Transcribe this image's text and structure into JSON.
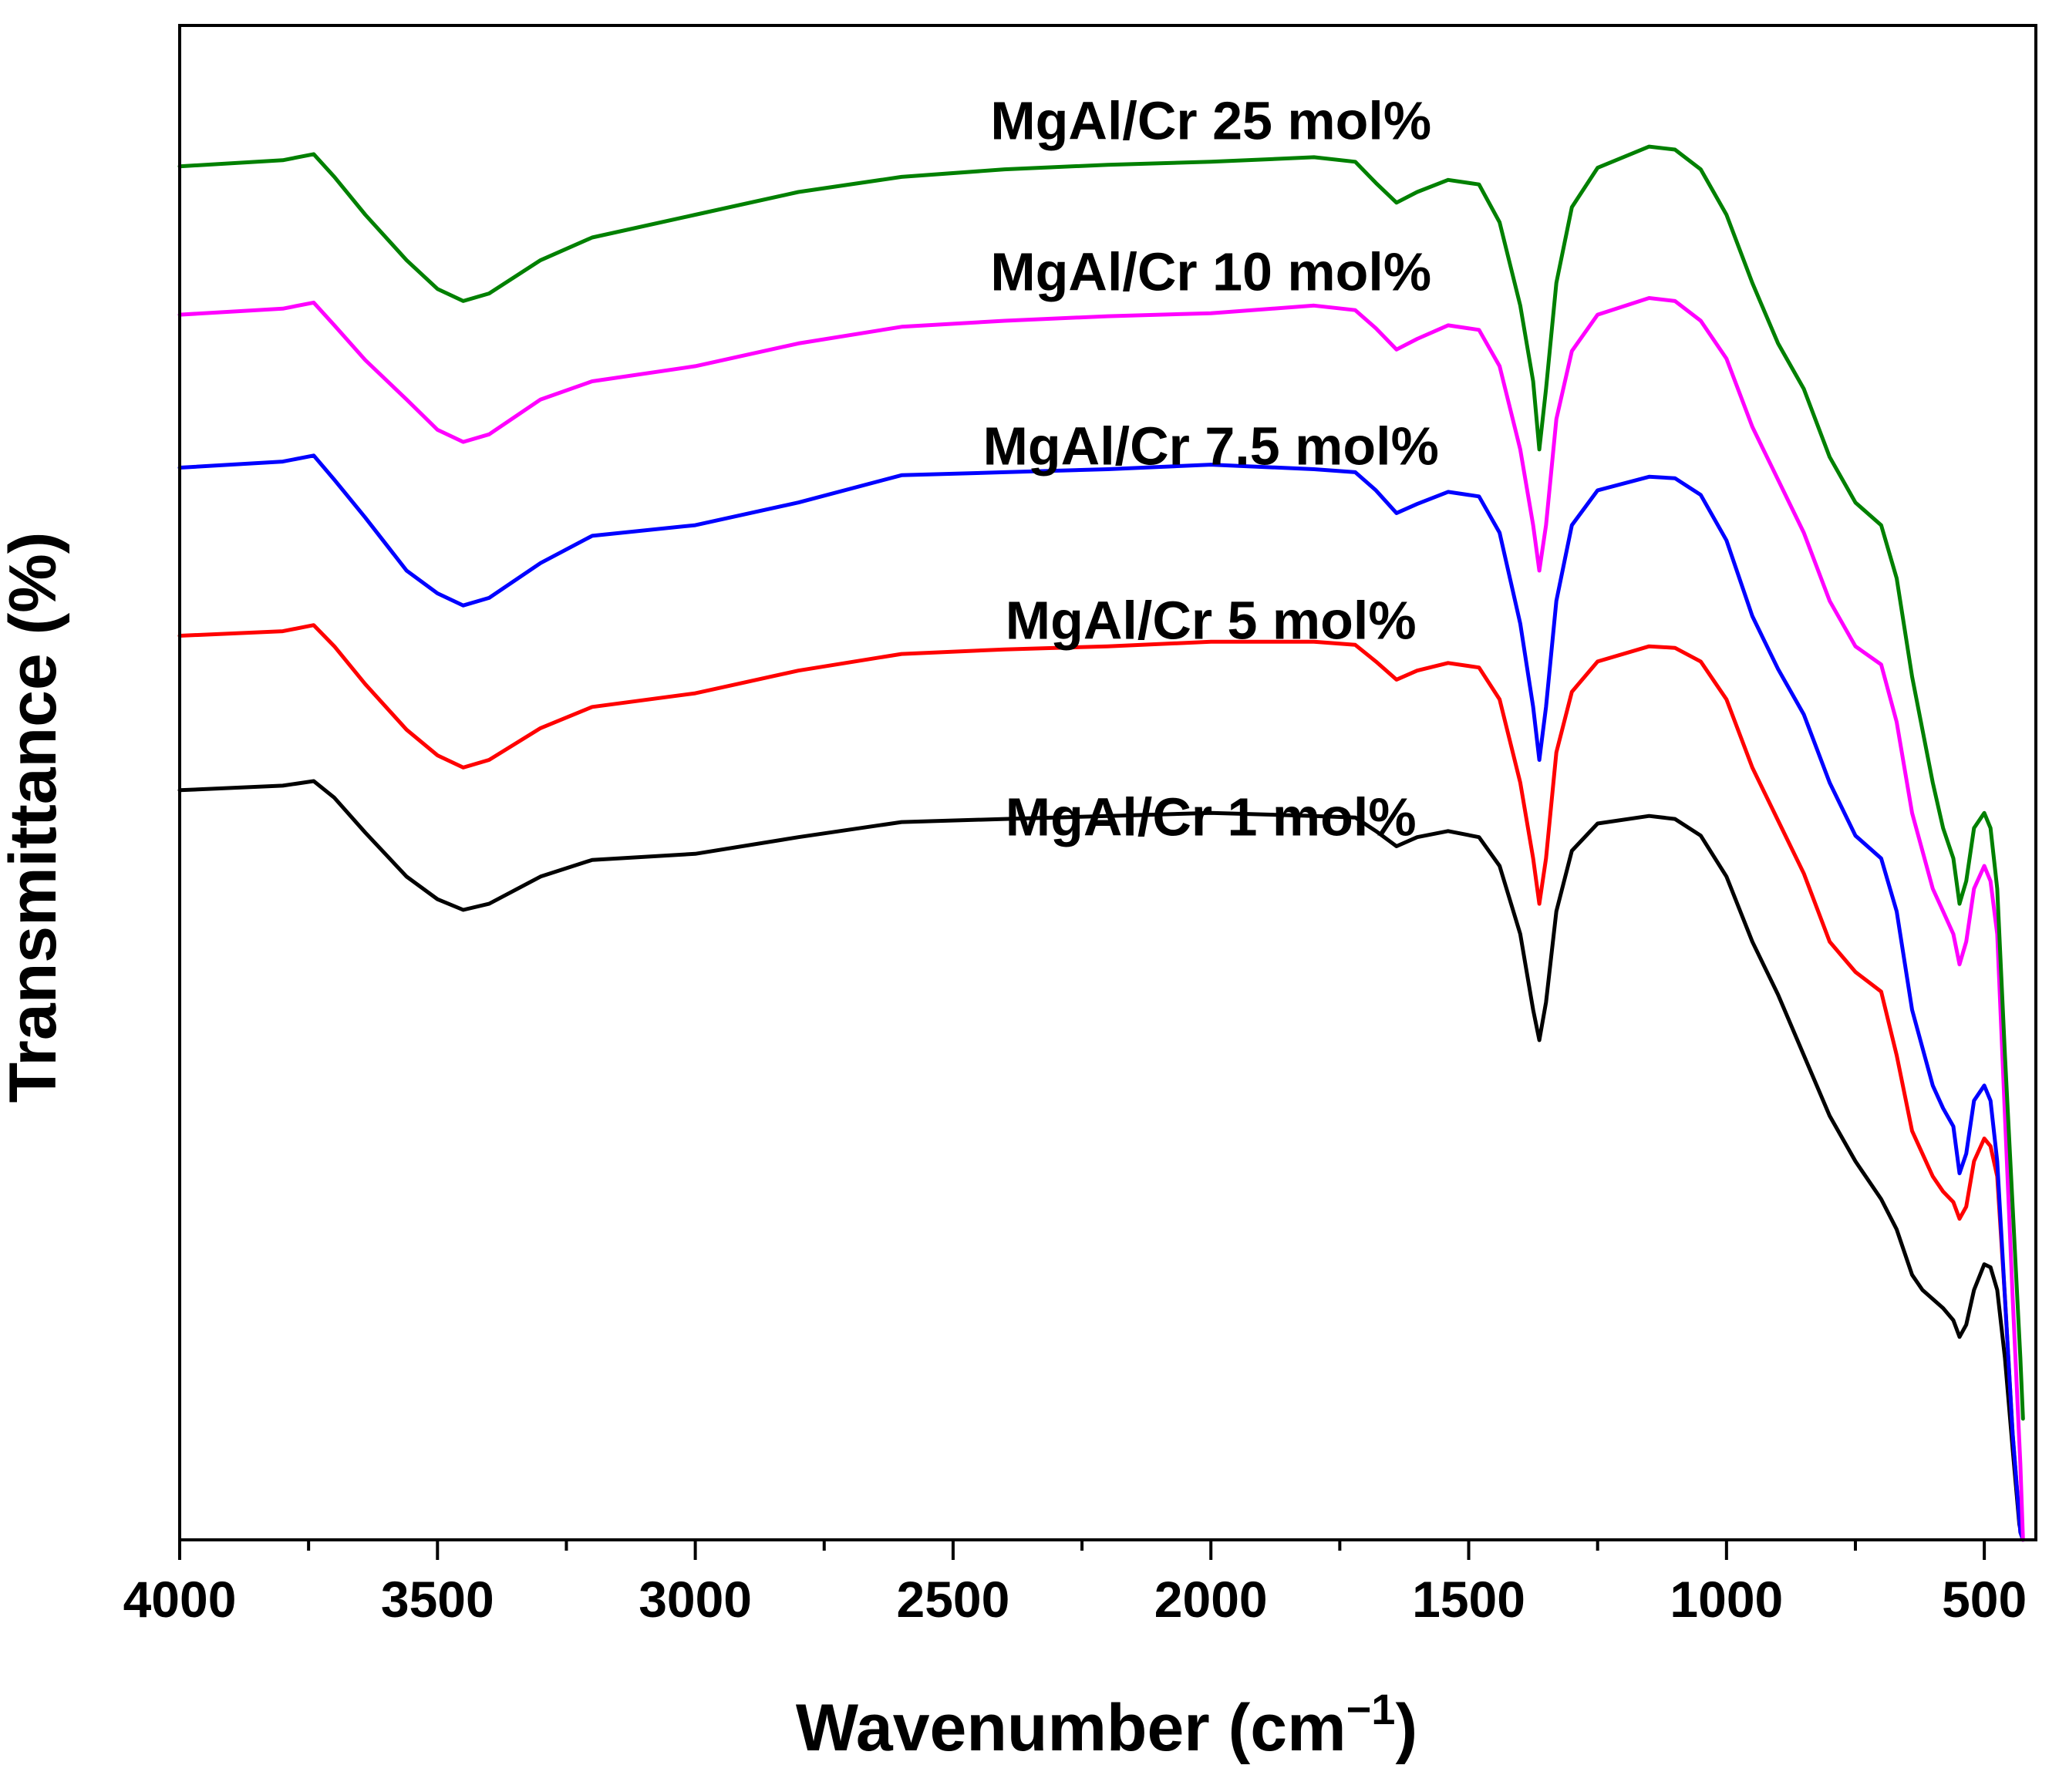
{
  "chart_data": {
    "type": "line",
    "title": "",
    "xlabel": "Wavenumber (cm",
    "xlabel_sup": "−1",
    "xlabel_close": ")",
    "ylabel": "Transmittance (%)",
    "xlim": [
      4000,
      400
    ],
    "x_reversed": true,
    "ylim": [
      0,
      100
    ],
    "y_ticks_shown": false,
    "x_major_ticks": [
      4000,
      3500,
      3000,
      2500,
      2000,
      1500,
      1000,
      500
    ],
    "x_major_tick_labels": [
      "4000",
      "3500",
      "3000",
      "2500",
      "2000",
      "1500",
      "1000",
      "500"
    ],
    "x_minor_ticks": [
      3750,
      3250,
      2750,
      2250,
      1750,
      1250,
      750
    ],
    "legend": "inline labels above each curve",
    "series": [
      {
        "name": "MgAl/Cr 1 mol%",
        "color": "#000000",
        "label_at": [
          2000,
          46.5
        ],
        "points": [
          [
            4000,
            49.5
          ],
          [
            3800,
            49.8
          ],
          [
            3740,
            50.1
          ],
          [
            3700,
            49.0
          ],
          [
            3640,
            46.7
          ],
          [
            3560,
            43.8
          ],
          [
            3500,
            42.3
          ],
          [
            3450,
            41.6
          ],
          [
            3400,
            42.0
          ],
          [
            3300,
            43.8
          ],
          [
            3200,
            44.9
          ],
          [
            3000,
            45.3
          ],
          [
            2800,
            46.4
          ],
          [
            2600,
            47.4
          ],
          [
            2400,
            47.6
          ],
          [
            2200,
            47.8
          ],
          [
            2000,
            48.0
          ],
          [
            1800,
            47.8
          ],
          [
            1720,
            47.7
          ],
          [
            1680,
            46.8
          ],
          [
            1640,
            45.8
          ],
          [
            1600,
            46.4
          ],
          [
            1540,
            46.8
          ],
          [
            1480,
            46.4
          ],
          [
            1440,
            44.5
          ],
          [
            1400,
            40.0
          ],
          [
            1375,
            35.0
          ],
          [
            1363,
            33.0
          ],
          [
            1350,
            35.5
          ],
          [
            1330,
            41.5
          ],
          [
            1300,
            45.5
          ],
          [
            1250,
            47.3
          ],
          [
            1150,
            47.8
          ],
          [
            1100,
            47.6
          ],
          [
            1050,
            46.5
          ],
          [
            1000,
            43.8
          ],
          [
            950,
            39.5
          ],
          [
            900,
            36.0
          ],
          [
            850,
            32.0
          ],
          [
            800,
            28.0
          ],
          [
            750,
            25.0
          ],
          [
            700,
            22.5
          ],
          [
            670,
            20.5
          ],
          [
            640,
            17.5
          ],
          [
            620,
            16.5
          ],
          [
            580,
            15.3
          ],
          [
            560,
            14.5
          ],
          [
            548,
            13.4
          ],
          [
            535,
            14.2
          ],
          [
            520,
            16.5
          ],
          [
            500,
            18.2
          ],
          [
            488,
            18.0
          ],
          [
            475,
            16.5
          ],
          [
            460,
            12.0
          ],
          [
            445,
            6.0
          ],
          [
            432,
            1.0
          ],
          [
            425,
            0.0
          ]
        ]
      },
      {
        "name": "MgAl/Cr 5 mol%",
        "color": "#ff0000",
        "label_at": [
          2000,
          59.5
        ],
        "points": [
          [
            4000,
            59.7
          ],
          [
            3800,
            60.0
          ],
          [
            3740,
            60.4
          ],
          [
            3700,
            59.0
          ],
          [
            3640,
            56.5
          ],
          [
            3560,
            53.5
          ],
          [
            3500,
            51.8
          ],
          [
            3450,
            51.0
          ],
          [
            3400,
            51.5
          ],
          [
            3300,
            53.6
          ],
          [
            3200,
            55.0
          ],
          [
            3000,
            55.9
          ],
          [
            2800,
            57.4
          ],
          [
            2600,
            58.5
          ],
          [
            2400,
            58.8
          ],
          [
            2200,
            59.0
          ],
          [
            2000,
            59.3
          ],
          [
            1800,
            59.3
          ],
          [
            1720,
            59.1
          ],
          [
            1680,
            58.0
          ],
          [
            1640,
            56.8
          ],
          [
            1600,
            57.4
          ],
          [
            1540,
            57.9
          ],
          [
            1480,
            57.6
          ],
          [
            1440,
            55.5
          ],
          [
            1400,
            50.0
          ],
          [
            1375,
            45.0
          ],
          [
            1363,
            42.0
          ],
          [
            1350,
            45.0
          ],
          [
            1330,
            52.0
          ],
          [
            1300,
            56.0
          ],
          [
            1250,
            58.0
          ],
          [
            1150,
            59.0
          ],
          [
            1100,
            58.9
          ],
          [
            1050,
            58.0
          ],
          [
            1000,
            55.5
          ],
          [
            950,
            51.0
          ],
          [
            900,
            47.5
          ],
          [
            850,
            44.0
          ],
          [
            800,
            39.5
          ],
          [
            750,
            37.5
          ],
          [
            700,
            36.2
          ],
          [
            670,
            32.0
          ],
          [
            640,
            27.0
          ],
          [
            600,
            24.0
          ],
          [
            580,
            23.0
          ],
          [
            560,
            22.3
          ],
          [
            548,
            21.2
          ],
          [
            535,
            22.0
          ],
          [
            520,
            25.0
          ],
          [
            500,
            26.5
          ],
          [
            488,
            26.0
          ],
          [
            475,
            24.0
          ],
          [
            460,
            16.0
          ],
          [
            445,
            7.0
          ],
          [
            430,
            0.5
          ],
          [
            425,
            0.0
          ]
        ]
      },
      {
        "name": "MgAl/Cr 7.5 mol%",
        "color": "#0000ff",
        "label_at": [
          2000,
          71.0
        ],
        "points": [
          [
            4000,
            70.8
          ],
          [
            3800,
            71.2
          ],
          [
            3740,
            71.6
          ],
          [
            3700,
            70.0
          ],
          [
            3640,
            67.5
          ],
          [
            3560,
            64.0
          ],
          [
            3500,
            62.5
          ],
          [
            3450,
            61.7
          ],
          [
            3400,
            62.2
          ],
          [
            3300,
            64.5
          ],
          [
            3200,
            66.3
          ],
          [
            3000,
            67.0
          ],
          [
            2800,
            68.5
          ],
          [
            2600,
            70.3
          ],
          [
            2400,
            70.5
          ],
          [
            2200,
            70.7
          ],
          [
            2000,
            71.0
          ],
          [
            1800,
            70.7
          ],
          [
            1720,
            70.5
          ],
          [
            1680,
            69.3
          ],
          [
            1640,
            67.8
          ],
          [
            1600,
            68.4
          ],
          [
            1540,
            69.2
          ],
          [
            1480,
            68.9
          ],
          [
            1440,
            66.5
          ],
          [
            1400,
            60.5
          ],
          [
            1375,
            55.0
          ],
          [
            1363,
            51.5
          ],
          [
            1350,
            55.0
          ],
          [
            1330,
            62.0
          ],
          [
            1300,
            67.0
          ],
          [
            1250,
            69.3
          ],
          [
            1150,
            70.2
          ],
          [
            1100,
            70.1
          ],
          [
            1050,
            69.0
          ],
          [
            1000,
            66.0
          ],
          [
            950,
            61.0
          ],
          [
            900,
            57.5
          ],
          [
            850,
            54.5
          ],
          [
            800,
            50.0
          ],
          [
            750,
            46.5
          ],
          [
            700,
            45.0
          ],
          [
            670,
            41.5
          ],
          [
            640,
            35.0
          ],
          [
            600,
            30.0
          ],
          [
            580,
            28.5
          ],
          [
            560,
            27.3
          ],
          [
            548,
            24.2
          ],
          [
            535,
            25.5
          ],
          [
            520,
            29.0
          ],
          [
            500,
            30.0
          ],
          [
            488,
            29.0
          ],
          [
            475,
            25.0
          ],
          [
            460,
            16.0
          ],
          [
            445,
            7.0
          ],
          [
            430,
            0.5
          ],
          [
            425,
            0.0
          ]
        ]
      },
      {
        "name": "MgAl/Cr 10 mol%",
        "color": "#ff00ff",
        "label_at": [
          2000,
          82.5
        ],
        "points": [
          [
            4000,
            80.9
          ],
          [
            3800,
            81.3
          ],
          [
            3740,
            81.7
          ],
          [
            3700,
            80.2
          ],
          [
            3640,
            77.9
          ],
          [
            3560,
            75.3
          ],
          [
            3500,
            73.3
          ],
          [
            3450,
            72.5
          ],
          [
            3400,
            73.0
          ],
          [
            3300,
            75.3
          ],
          [
            3200,
            76.5
          ],
          [
            3000,
            77.5
          ],
          [
            2800,
            79.0
          ],
          [
            2600,
            80.1
          ],
          [
            2400,
            80.5
          ],
          [
            2200,
            80.8
          ],
          [
            2000,
            81.0
          ],
          [
            1800,
            81.5
          ],
          [
            1720,
            81.2
          ],
          [
            1680,
            80.0
          ],
          [
            1640,
            78.6
          ],
          [
            1600,
            79.3
          ],
          [
            1540,
            80.2
          ],
          [
            1480,
            79.9
          ],
          [
            1440,
            77.5
          ],
          [
            1400,
            72.0
          ],
          [
            1375,
            67.0
          ],
          [
            1363,
            64.0
          ],
          [
            1350,
            67.0
          ],
          [
            1330,
            74.0
          ],
          [
            1300,
            78.5
          ],
          [
            1250,
            80.9
          ],
          [
            1150,
            82.0
          ],
          [
            1100,
            81.8
          ],
          [
            1050,
            80.5
          ],
          [
            1000,
            78.0
          ],
          [
            950,
            73.5
          ],
          [
            900,
            70.0
          ],
          [
            850,
            66.5
          ],
          [
            800,
            62.0
          ],
          [
            750,
            59.0
          ],
          [
            700,
            57.8
          ],
          [
            670,
            54.0
          ],
          [
            640,
            48.0
          ],
          [
            600,
            43.0
          ],
          [
            580,
            41.5
          ],
          [
            560,
            40.0
          ],
          [
            548,
            38.0
          ],
          [
            535,
            39.5
          ],
          [
            520,
            43.0
          ],
          [
            500,
            44.5
          ],
          [
            488,
            43.5
          ],
          [
            475,
            40.0
          ],
          [
            460,
            28.0
          ],
          [
            445,
            16.0
          ],
          [
            430,
            5.0
          ],
          [
            425,
            0.0
          ]
        ]
      },
      {
        "name": "MgAl/Cr 25 mol%",
        "color": "#008000",
        "label_at": [
          2000,
          92.5
        ],
        "points": [
          [
            4000,
            90.7
          ],
          [
            3800,
            91.1
          ],
          [
            3740,
            91.5
          ],
          [
            3700,
            90.0
          ],
          [
            3640,
            87.5
          ],
          [
            3560,
            84.5
          ],
          [
            3500,
            82.6
          ],
          [
            3450,
            81.8
          ],
          [
            3400,
            82.3
          ],
          [
            3300,
            84.5
          ],
          [
            3200,
            86.0
          ],
          [
            3000,
            87.5
          ],
          [
            2800,
            89.0
          ],
          [
            2600,
            90.0
          ],
          [
            2400,
            90.5
          ],
          [
            2200,
            90.8
          ],
          [
            2000,
            91.0
          ],
          [
            1800,
            91.3
          ],
          [
            1720,
            91.0
          ],
          [
            1680,
            89.6
          ],
          [
            1640,
            88.3
          ],
          [
            1600,
            89.0
          ],
          [
            1540,
            89.8
          ],
          [
            1480,
            89.5
          ],
          [
            1440,
            87.0
          ],
          [
            1400,
            81.5
          ],
          [
            1375,
            76.5
          ],
          [
            1363,
            72.0
          ],
          [
            1350,
            76.0
          ],
          [
            1330,
            83.0
          ],
          [
            1300,
            88.0
          ],
          [
            1250,
            90.6
          ],
          [
            1150,
            92.0
          ],
          [
            1100,
            91.8
          ],
          [
            1050,
            90.5
          ],
          [
            1000,
            87.5
          ],
          [
            950,
            83.0
          ],
          [
            900,
            79.0
          ],
          [
            850,
            76.0
          ],
          [
            800,
            71.5
          ],
          [
            750,
            68.5
          ],
          [
            700,
            67.0
          ],
          [
            670,
            63.5
          ],
          [
            640,
            57.0
          ],
          [
            600,
            50.0
          ],
          [
            580,
            47.0
          ],
          [
            560,
            45.0
          ],
          [
            548,
            42.0
          ],
          [
            535,
            43.5
          ],
          [
            520,
            47.0
          ],
          [
            500,
            48.0
          ],
          [
            488,
            47.0
          ],
          [
            475,
            43.0
          ],
          [
            460,
            32.0
          ],
          [
            445,
            22.0
          ],
          [
            430,
            12.0
          ],
          [
            425,
            8.0
          ]
        ]
      }
    ]
  }
}
